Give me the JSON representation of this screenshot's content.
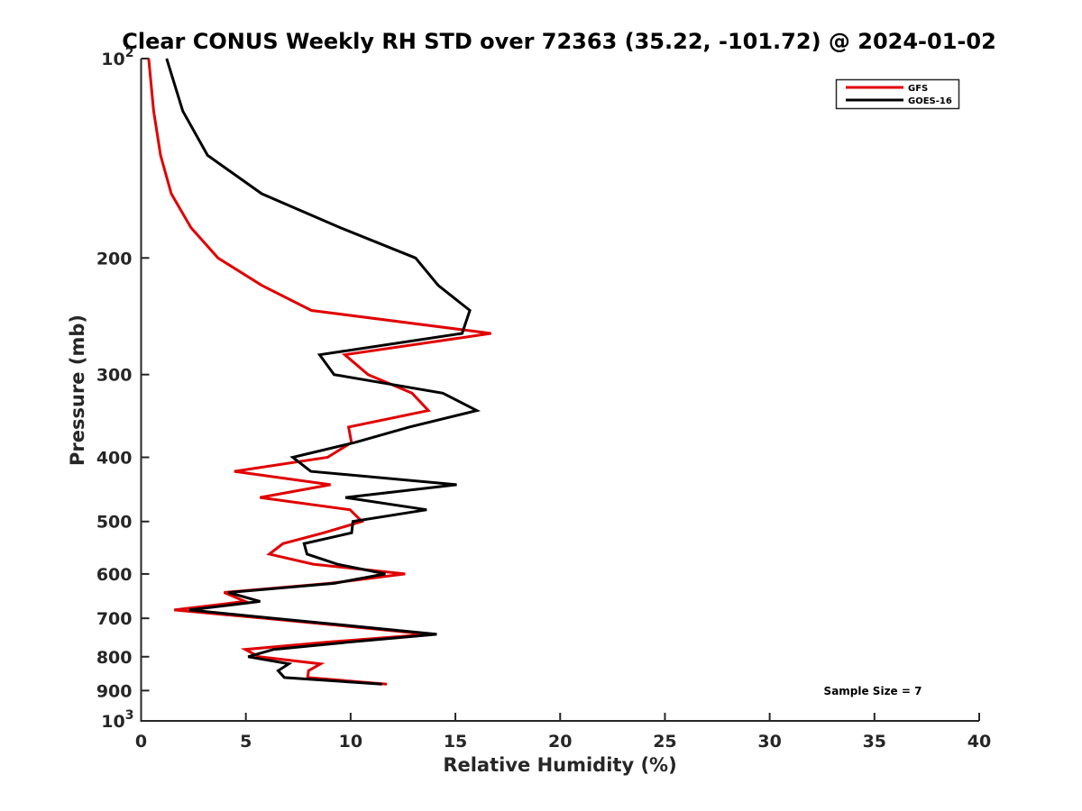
{
  "chart_data": {
    "type": "line",
    "title": "Clear CONUS Weekly RH STD over 72363 (35.22, -101.72) @ 2024-01-02",
    "xlabel": "Relative Humidity (%)",
    "ylabel": "Pressure (mb)",
    "xlim": [
      0,
      40
    ],
    "ylim": [
      100,
      1000
    ],
    "yscale": "log",
    "y_reversed": true,
    "grid": false,
    "x_ticks": [
      0,
      5,
      10,
      15,
      20,
      25,
      30,
      35,
      40
    ],
    "x_tick_labels": [
      "0",
      "5",
      "10",
      "15",
      "20",
      "25",
      "30",
      "35",
      "40"
    ],
    "y_ticks": [
      100,
      200,
      300,
      400,
      500,
      600,
      700,
      800,
      900,
      1000
    ],
    "y_tick_labels": [
      {
        "base": "10",
        "exp": "2"
      },
      {
        "text": "200"
      },
      {
        "text": "300"
      },
      {
        "text": "400"
      },
      {
        "text": "500"
      },
      {
        "text": "600"
      },
      {
        "text": "700"
      },
      {
        "text": "800"
      },
      {
        "text": "900"
      },
      {
        "base": "10",
        "exp": "3"
      }
    ],
    "legend_position": "top-right",
    "pressure_levels": [
      100,
      120,
      140,
      160,
      180,
      200,
      220,
      240,
      260,
      280,
      300,
      320,
      340,
      360,
      380,
      400,
      420,
      440,
      460,
      480,
      500,
      520,
      540,
      560,
      580,
      600,
      620,
      640,
      660,
      680,
      700,
      720,
      740,
      760,
      780,
      800,
      820,
      840,
      860,
      880
    ],
    "series": [
      {
        "name": "GFS",
        "color": "#e00000",
        "values": [
          0.36,
          0.6,
          0.93,
          1.44,
          2.38,
          3.67,
          5.76,
          8.13,
          16.7,
          9.72,
          10.83,
          12.93,
          13.71,
          9.9,
          10.04,
          8.9,
          4.45,
          9.04,
          5.67,
          9.97,
          10.54,
          8.71,
          6.77,
          6.12,
          8.21,
          12.6,
          9.0,
          3.96,
          4.97,
          1.58,
          5.9,
          9.9,
          13.7,
          9.0,
          4.97,
          5.62,
          8.57,
          7.99,
          7.95,
          11.73
        ]
      },
      {
        "name": "GOES-16",
        "color": "#000000",
        "values": [
          1.22,
          1.99,
          3.17,
          5.76,
          9.5,
          13.1,
          14.18,
          15.69,
          15.32,
          8.52,
          9.21,
          14.4,
          16.02,
          12.8,
          10.2,
          7.24,
          8.1,
          15.06,
          9.75,
          13.63,
          10.11,
          10.05,
          7.78,
          7.92,
          9.36,
          11.66,
          9.21,
          4.17,
          5.68,
          2.3,
          6.3,
          10.3,
          14.11,
          10.0,
          6.32,
          5.11,
          7.05,
          6.54,
          6.84,
          11.5
        ]
      }
    ],
    "annotations": [
      "Sample Size = 7"
    ]
  }
}
